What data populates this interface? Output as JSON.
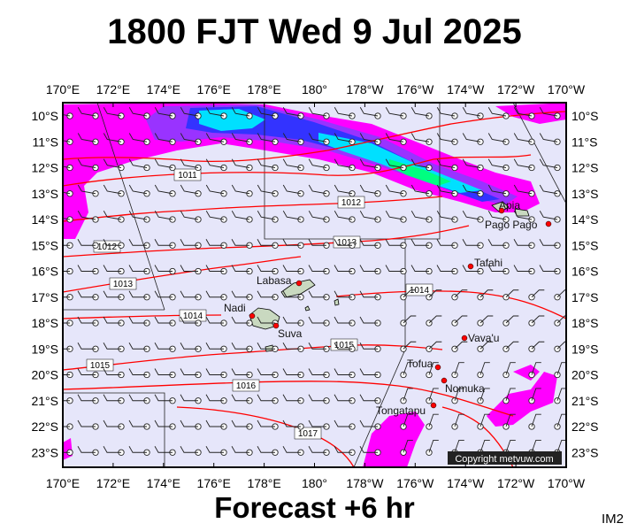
{
  "title": "1800 FJT Wed 9 Jul 2025",
  "footer": "Forecast +6 hr",
  "image_code": "IM2",
  "copyright": "Copyright metvuw.com",
  "map": {
    "lon_labels": [
      "170°E",
      "172°E",
      "174°E",
      "176°E",
      "178°E",
      "180°",
      "178°W",
      "176°W",
      "174°W",
      "172°W",
      "170°W"
    ],
    "lat_labels": [
      "10°S",
      "11°S",
      "12°S",
      "13°S",
      "14°S",
      "15°S",
      "16°S",
      "17°S",
      "18°S",
      "19°S",
      "20°S",
      "21°S",
      "22°S",
      "23°S"
    ],
    "places": [
      {
        "name": "Apia"
      },
      {
        "name": "Pago Pago"
      },
      {
        "name": "Tafahi"
      },
      {
        "name": "Labasa"
      },
      {
        "name": "Nadi"
      },
      {
        "name": "Suva"
      },
      {
        "name": "Vava'u"
      },
      {
        "name": "Tofua"
      },
      {
        "name": "Nomuka"
      },
      {
        "name": "Tongatapu"
      }
    ],
    "isobars": [
      "1011",
      "1012",
      "1012",
      "1013",
      "1013",
      "1014",
      "1014",
      "1015",
      "1015",
      "1016",
      "1017"
    ],
    "colors": {
      "background": "#e6e6fa",
      "isobar": "#ff0000",
      "rain_light": "#ff00ff",
      "rain_mid": "#3333ff",
      "rain_heavy": "#00e0ff",
      "rain_peak": "#00ff80",
      "land": "#c9d9c0",
      "barb": "#222222"
    }
  }
}
